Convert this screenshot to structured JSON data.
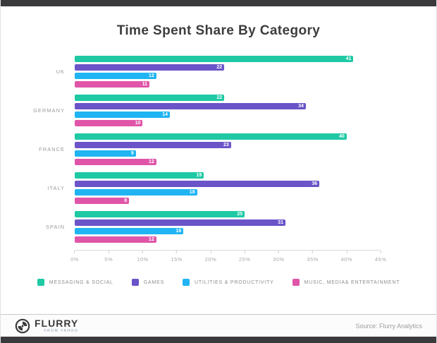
{
  "page": {
    "title": "Time Spent Share By Category"
  },
  "chart_data": {
    "type": "bar",
    "orientation": "horizontal",
    "title": "Time Spent Share By Category",
    "categories": [
      "UK",
      "GERMANY",
      "FRANCE",
      "ITALY",
      "SPAIN"
    ],
    "series": [
      {
        "name": "MESSAGING & SOCIAL",
        "color": "#1ec9a4",
        "values": [
          41,
          22,
          40,
          19,
          25
        ]
      },
      {
        "name": "GAMES",
        "color": "#6a54c8",
        "values": [
          22,
          34,
          23,
          36,
          31
        ]
      },
      {
        "name": "UTILITIES & PRODUCTIVITY",
        "color": "#20b4f3",
        "values": [
          12,
          14,
          9,
          18,
          16
        ]
      },
      {
        "name": "MUSIC, MEDIA& ENTERTAINMENT",
        "color": "#e055a8",
        "values": [
          11,
          10,
          12,
          8,
          12
        ]
      }
    ],
    "x_ticks": [
      "0%",
      "5%",
      "10%",
      "15%",
      "20%",
      "25%",
      "30%",
      "35%",
      "40%",
      "45%"
    ],
    "xlim": [
      0,
      45
    ],
    "value_labels": true,
    "grid": false,
    "legend_position": "bottom"
  },
  "footer": {
    "brand": "FLURRY",
    "brand_sub": "FROM YAHOO",
    "source": "Source: Flurry Analytics"
  }
}
